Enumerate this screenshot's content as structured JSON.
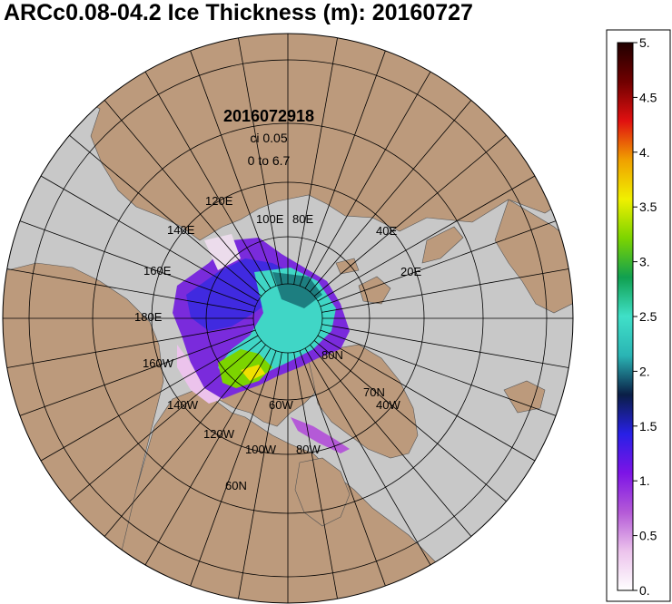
{
  "title": "ARCc0.08-04.2 Ice Thickness (m): 20160727",
  "map": {
    "info": {
      "timestamp": "2016072918",
      "contour_interval": "ci 0.05",
      "range": "0 to 6.7"
    },
    "graticule_labels": [
      {
        "text": "120E"
      },
      {
        "text": "100E"
      },
      {
        "text": "80E"
      },
      {
        "text": "140E"
      },
      {
        "text": "40E"
      },
      {
        "text": "20E"
      },
      {
        "text": "160E"
      },
      {
        "text": "180E"
      },
      {
        "text": "80N"
      },
      {
        "text": "160W"
      },
      {
        "text": "70N"
      },
      {
        "text": "40W"
      },
      {
        "text": "140W"
      },
      {
        "text": "60W"
      },
      {
        "text": "120W"
      },
      {
        "text": "100W"
      },
      {
        "text": "80W"
      },
      {
        "text": "60N"
      }
    ],
    "colors": {
      "ocean": "#c8c8c8",
      "land": "#bc9a7c",
      "background": "#ffffff"
    }
  },
  "colorbar": {
    "units": "m",
    "min": 0,
    "max": 5,
    "ticks": [
      "5.",
      "4.5",
      "4.",
      "3.5",
      "3.",
      "2.5",
      "2.",
      "1.5",
      "1.",
      "0.5",
      "0."
    ],
    "colors": [
      "#ffffff",
      "#ecc3ec",
      "#b45ad7",
      "#7d14e6",
      "#2820e6",
      "#0a1e46",
      "#2ab4b4",
      "#40e0c8",
      "#10a050",
      "#7cd400",
      "#f0f000",
      "#f0a000",
      "#e01010",
      "#700000",
      "#200000"
    ]
  }
}
